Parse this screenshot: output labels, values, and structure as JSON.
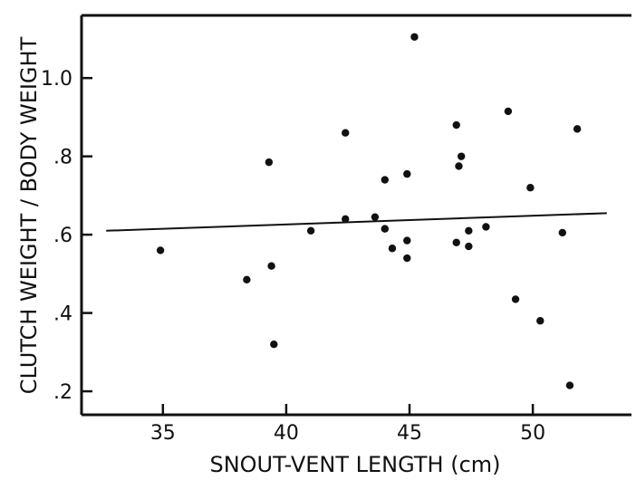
{
  "chart_data": {
    "type": "scatter",
    "title": "",
    "xlabel": "SNOUT-VENT LENGTH (cm)",
    "ylabel": "CLUTCH WEIGHT / BODY WEIGHT",
    "xlim": [
      31.7,
      54
    ],
    "ylim": [
      0.14,
      1.16
    ],
    "x_ticks": [
      35,
      40,
      45,
      50
    ],
    "x_tick_labels": [
      "35",
      "40",
      "45",
      "50"
    ],
    "y_ticks": [
      0.2,
      0.4,
      0.6,
      0.8,
      1.0
    ],
    "y_tick_labels": [
      ".2",
      ".4",
      ".6",
      ".8",
      "1.0"
    ],
    "grid": false,
    "points": [
      {
        "x": 34.9,
        "y": 0.56
      },
      {
        "x": 38.4,
        "y": 0.485
      },
      {
        "x": 39.3,
        "y": 0.785
      },
      {
        "x": 39.4,
        "y": 0.52
      },
      {
        "x": 39.5,
        "y": 0.32
      },
      {
        "x": 41.0,
        "y": 0.61
      },
      {
        "x": 42.4,
        "y": 0.64
      },
      {
        "x": 42.4,
        "y": 0.86
      },
      {
        "x": 43.6,
        "y": 0.645
      },
      {
        "x": 44.0,
        "y": 0.615
      },
      {
        "x": 44.0,
        "y": 0.74
      },
      {
        "x": 44.3,
        "y": 0.565
      },
      {
        "x": 44.9,
        "y": 0.755
      },
      {
        "x": 44.9,
        "y": 0.585
      },
      {
        "x": 44.9,
        "y": 0.54
      },
      {
        "x": 45.2,
        "y": 1.105
      },
      {
        "x": 46.9,
        "y": 0.88
      },
      {
        "x": 46.9,
        "y": 0.58
      },
      {
        "x": 47.0,
        "y": 0.775
      },
      {
        "x": 47.1,
        "y": 0.8
      },
      {
        "x": 47.4,
        "y": 0.61
      },
      {
        "x": 47.4,
        "y": 0.57
      },
      {
        "x": 48.1,
        "y": 0.62
      },
      {
        "x": 49.0,
        "y": 0.915
      },
      {
        "x": 49.3,
        "y": 0.435
      },
      {
        "x": 49.9,
        "y": 0.72
      },
      {
        "x": 50.3,
        "y": 0.38
      },
      {
        "x": 51.2,
        "y": 0.605
      },
      {
        "x": 51.5,
        "y": 0.215
      },
      {
        "x": 51.8,
        "y": 0.87
      }
    ],
    "fit_line": {
      "x": [
        32.7,
        53.0
      ],
      "y": [
        0.61,
        0.655
      ]
    }
  }
}
